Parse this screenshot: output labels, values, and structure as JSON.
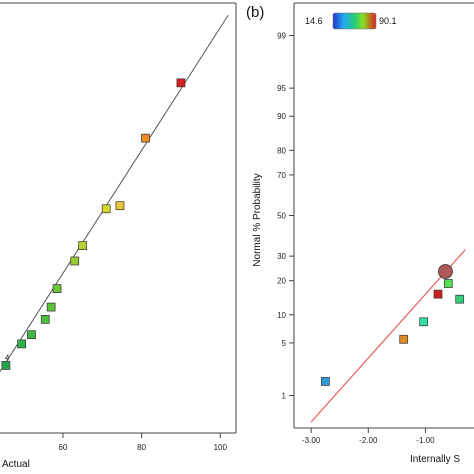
{
  "chart_data": [
    {
      "type": "scatter",
      "xlabel": "Actual",
      "ylabel": "",
      "x_ticks": [
        "60",
        "80",
        "100"
      ],
      "xlim": [
        44,
        104
      ],
      "ylim": [
        34,
        104
      ],
      "reference_line": "y = x",
      "points": [
        {
          "x": 45.5,
          "y": 45.0,
          "color": "#22a84b"
        },
        {
          "x": 49.5,
          "y": 48.5,
          "color": "#2eb14a"
        },
        {
          "x": 52.0,
          "y": 50.0,
          "color": "#3cb843"
        },
        {
          "x": 55.5,
          "y": 52.5,
          "color": "#4dbd3e"
        },
        {
          "x": 57.0,
          "y": 54.5,
          "color": "#5dc23a"
        },
        {
          "x": 58.5,
          "y": 57.5,
          "color": "#6cc636"
        },
        {
          "x": 63.0,
          "y": 62.0,
          "color": "#9ccc33"
        },
        {
          "x": 65.0,
          "y": 64.5,
          "color": "#b3d22f"
        },
        {
          "x": 71.0,
          "y": 70.5,
          "color": "#d4d728"
        },
        {
          "x": 74.5,
          "y": 71.0,
          "color": "#e8c83a"
        },
        {
          "x": 81.0,
          "y": 82.0,
          "color": "#ee8a25"
        },
        {
          "x": 90.0,
          "y": 91.0,
          "color": "#d81e1e"
        }
      ],
      "point_label": "4",
      "point_label_at": {
        "x": 45.5,
        "y": 45.0
      }
    },
    {
      "type": "scatter",
      "panel_label": "(b)",
      "xlabel": "Internally S",
      "ylabel": "Normal % Probability",
      "x_ticks": [
        "-3.00",
        "-2.00",
        "-1.00"
      ],
      "y_ticks": [
        1,
        5,
        10,
        20,
        30,
        50,
        70,
        80,
        90,
        95,
        99
      ],
      "xlim": [
        -3.3,
        -0.15
      ],
      "ylim_probability": [
        0.3,
        99.7
      ],
      "colorbar": {
        "min": "14.6",
        "max": "90.1",
        "colors": [
          "#2233cc",
          "#22aaee",
          "#22cc77",
          "#88dd22",
          "#dd2222"
        ]
      },
      "reference_line": {
        "x_start": -3.0,
        "x_end": -0.3,
        "p_start": 0.38,
        "p_end": 33
      },
      "points": [
        {
          "x": -2.75,
          "p": 1.6,
          "color": "#3399dd",
          "shape": "square"
        },
        {
          "x": -1.38,
          "p": 5.5,
          "color": "#e08a2a",
          "shape": "square"
        },
        {
          "x": -1.03,
          "p": 8.5,
          "color": "#33ddaa",
          "shape": "square"
        },
        {
          "x": -0.78,
          "p": 15.5,
          "color": "#d01e1e",
          "shape": "square"
        },
        {
          "x": -0.6,
          "p": 19.0,
          "color": "#55dd55",
          "shape": "square"
        },
        {
          "x": -0.4,
          "p": 14.0,
          "color": "#33cc77",
          "shape": "square"
        },
        {
          "x": -0.65,
          "p": 23.5,
          "color": "#b05858",
          "shape": "circle"
        }
      ]
    }
  ]
}
